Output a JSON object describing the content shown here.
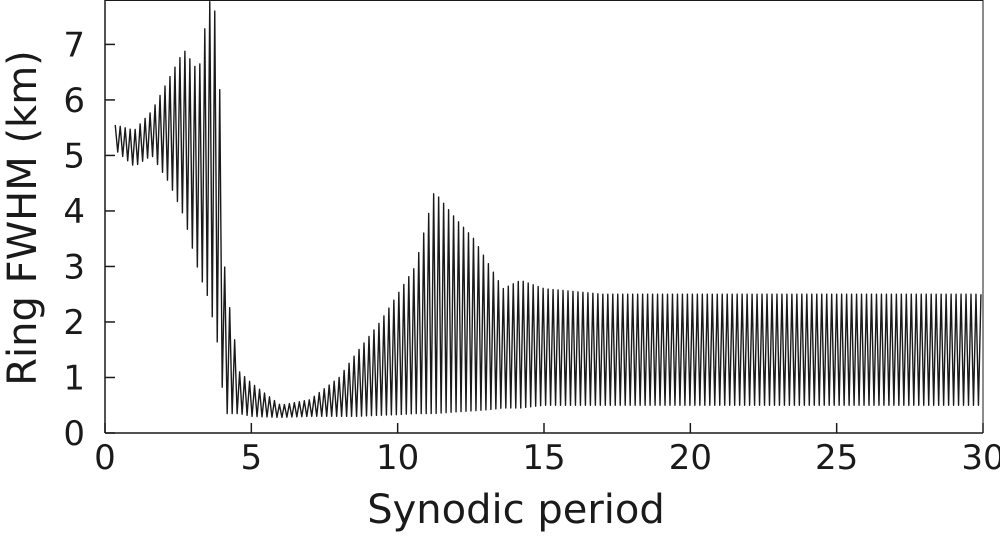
{
  "chart_data": {
    "type": "line",
    "title": "",
    "xlabel": "Synodic period",
    "ylabel": "Ring FWHM (km)",
    "xlim": [
      0,
      30
    ],
    "ylim": [
      0,
      7.8
    ],
    "x_ticks": [
      0,
      5,
      10,
      15,
      20,
      25,
      30
    ],
    "y_ticks": [
      0,
      1,
      2,
      3,
      4,
      5,
      6,
      7
    ],
    "grid": false,
    "legend": "none",
    "line_color": "#1a1a1a",
    "series": [
      {
        "oscillation_period": 0.17,
        "envelope": [
          {
            "x": 0.35,
            "max": 5.55,
            "min": 5.1
          },
          {
            "x": 1.0,
            "max": 5.45,
            "min": 4.8
          },
          {
            "x": 1.6,
            "max": 5.8,
            "min": 5.0
          },
          {
            "x": 2.2,
            "max": 6.4,
            "min": 4.5
          },
          {
            "x": 2.7,
            "max": 6.9,
            "min": 3.9
          },
          {
            "x": 3.2,
            "max": 6.5,
            "min": 2.9
          },
          {
            "x": 3.55,
            "max": 7.8,
            "min": 2.4
          },
          {
            "x": 3.85,
            "max": 7.5,
            "min": 1.6
          },
          {
            "x": 4.1,
            "max": 2.8,
            "min": 0.35
          },
          {
            "x": 4.6,
            "max": 1.1,
            "min": 0.35
          },
          {
            "x": 5.0,
            "max": 0.9,
            "min": 0.3
          },
          {
            "x": 6.0,
            "max": 0.5,
            "min": 0.28
          },
          {
            "x": 7.0,
            "max": 0.6,
            "min": 0.3
          },
          {
            "x": 8.0,
            "max": 1.0,
            "min": 0.3
          },
          {
            "x": 8.6,
            "max": 1.45,
            "min": 0.3
          },
          {
            "x": 9.4,
            "max": 2.0,
            "min": 0.32
          },
          {
            "x": 10.0,
            "max": 2.5,
            "min": 0.33
          },
          {
            "x": 10.6,
            "max": 3.0,
            "min": 0.35
          },
          {
            "x": 11.25,
            "max": 4.35,
            "min": 0.35
          },
          {
            "x": 12.0,
            "max": 3.85,
            "min": 0.38
          },
          {
            "x": 12.6,
            "max": 3.5,
            "min": 0.4
          },
          {
            "x": 13.1,
            "max": 3.05,
            "min": 0.42
          },
          {
            "x": 13.6,
            "max": 2.6,
            "min": 0.45
          },
          {
            "x": 14.2,
            "max": 2.75,
            "min": 0.45
          },
          {
            "x": 15.0,
            "max": 2.6,
            "min": 0.5
          },
          {
            "x": 17.0,
            "max": 2.5,
            "min": 0.5
          },
          {
            "x": 20.0,
            "max": 2.5,
            "min": 0.5
          },
          {
            "x": 25.0,
            "max": 2.5,
            "min": 0.5
          },
          {
            "x": 30.0,
            "max": 2.5,
            "min": 0.5
          }
        ]
      }
    ]
  }
}
